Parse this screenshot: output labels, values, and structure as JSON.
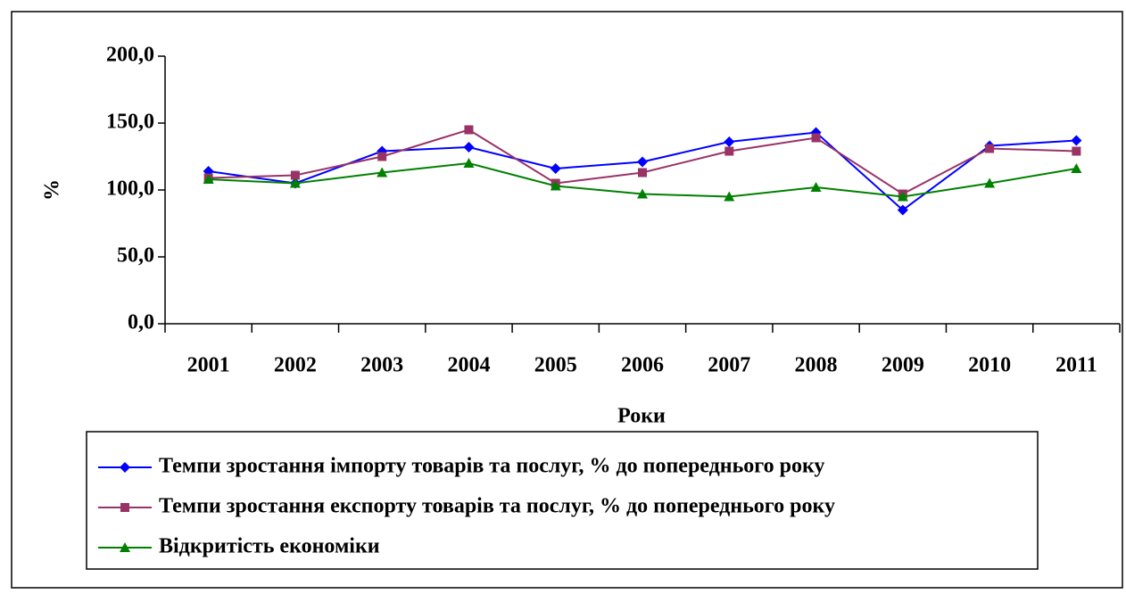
{
  "chart_data": {
    "type": "line",
    "x_label": "Роки",
    "y_label": "%",
    "categories": [
      "2001",
      "2002",
      "2003",
      "2004",
      "2005",
      "2006",
      "2007",
      "2008",
      "2009",
      "2010",
      "2011"
    ],
    "series": [
      {
        "name": "Темпи зростання імпорту товарів та послуг, % до попереднього року",
        "color": "#0000ff",
        "marker": "diamond",
        "values": [
          114,
          105,
          129,
          132,
          116,
          121,
          136,
          143,
          85,
          133,
          137
        ]
      },
      {
        "name": "Темпи зростання експорту товарів та послуг, % до попереднього року",
        "color": "#993366",
        "marker": "square",
        "values": [
          109,
          111,
          125,
          145,
          105,
          113,
          129,
          139,
          97,
          131,
          129
        ]
      },
      {
        "name": "Відкритість економіки",
        "color": "#008000",
        "marker": "triangle",
        "values": [
          108,
          105,
          113,
          120,
          103,
          97,
          95,
          102,
          95,
          105,
          116
        ]
      }
    ],
    "ylim": [
      0,
      200
    ],
    "yticks": [
      {
        "value": 0,
        "label": "0,0"
      },
      {
        "value": 50,
        "label": "50,0"
      },
      {
        "value": 100,
        "label": "100,0"
      },
      {
        "value": 150,
        "label": "150,0"
      },
      {
        "value": 200,
        "label": "200,0"
      }
    ],
    "grid": false,
    "legend": "bottom"
  }
}
